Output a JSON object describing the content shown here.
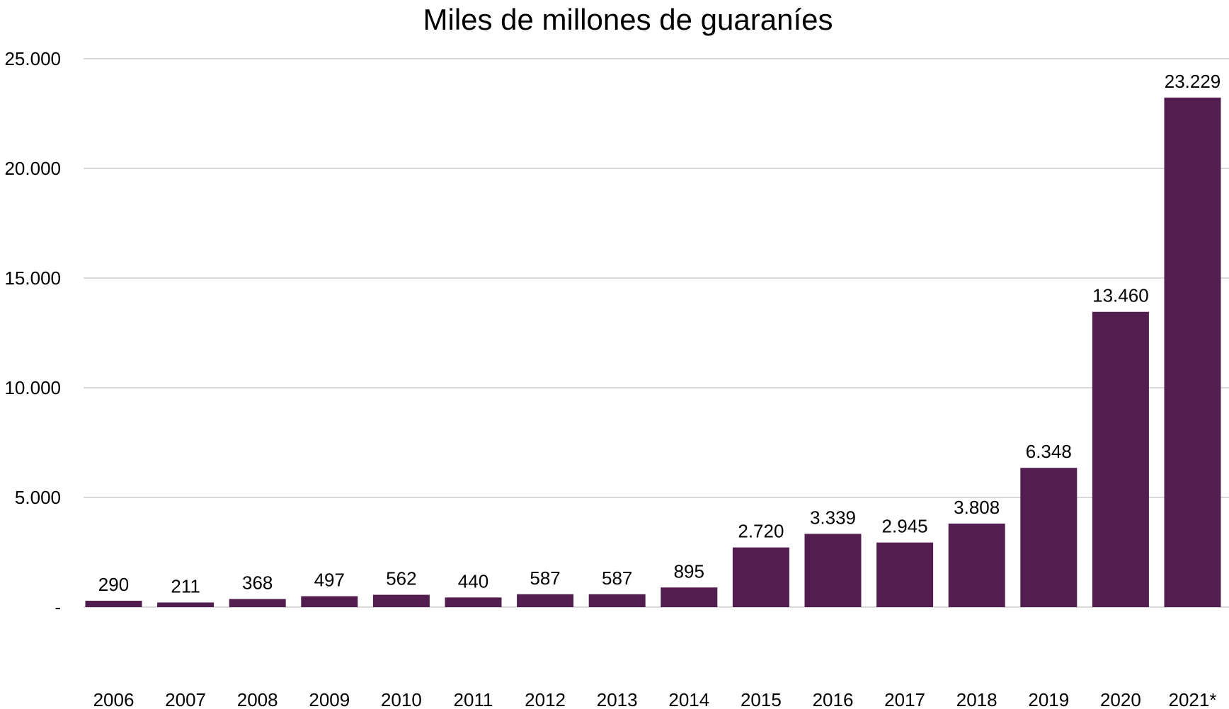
{
  "chart_data": {
    "type": "bar",
    "title": "Miles de millones de guaraníes",
    "xlabel": "",
    "ylabel": "",
    "categories": [
      "2006",
      "2007",
      "2008",
      "2009",
      "2010",
      "2011",
      "2012",
      "2013",
      "2014",
      "2015",
      "2016",
      "2017",
      "2018",
      "2019",
      "2020",
      "2021*"
    ],
    "values": [
      290,
      211,
      368,
      497,
      562,
      440,
      587,
      587,
      895,
      2720,
      3339,
      2945,
      3808,
      6348,
      13460,
      23229
    ],
    "value_labels": [
      "290",
      "211",
      "368",
      "497",
      "562",
      "440",
      "587",
      "587",
      "895",
      "2.720",
      "3.339",
      "2.945",
      "3.808",
      "6.348",
      "13.460",
      "23.229"
    ],
    "ylim": [
      0,
      25000
    ],
    "yticks": [
      0,
      5000,
      10000,
      15000,
      20000,
      25000
    ],
    "ytick_labels": [
      "-",
      "5.000",
      "10.000",
      "15.000",
      "20.000",
      "25.000"
    ],
    "grid": true,
    "legend": "none",
    "bar_color": "#521e50",
    "gridline_color": "#d9d9d9"
  }
}
